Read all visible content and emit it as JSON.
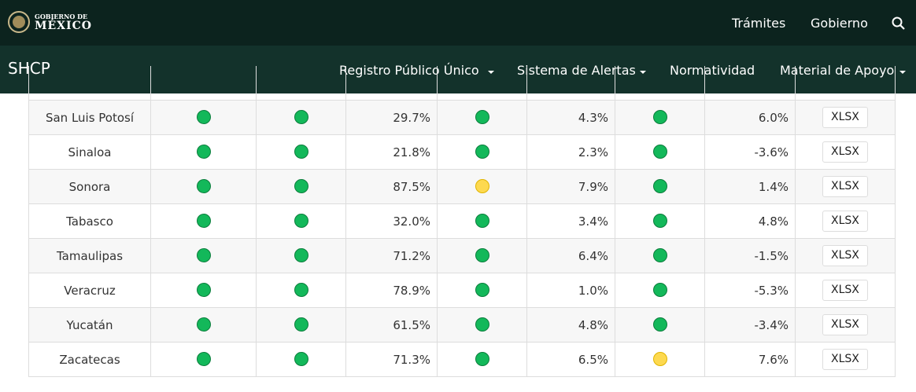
{
  "header": {
    "logo_line1": "GOBIERNO DE",
    "logo_line2": "MÉXICO",
    "nav": [
      "Trámites",
      "Gobierno"
    ]
  },
  "subnav": {
    "title": "SHCP",
    "menu": [
      "Registro Público Único",
      "Sistema de Alertas",
      "Normatividad",
      "Material de Apoyo"
    ]
  },
  "table": {
    "rows": [
      [
        "San Luis Potosí",
        "#13b85a",
        "#13b85a",
        "29.7%",
        "#13b85a",
        "4.3%",
        "#13b85a",
        "6.0%",
        "XLSX"
      ],
      [
        "Sinaloa",
        "#13b85a",
        "#13b85a",
        "21.8%",
        "#13b85a",
        "2.3%",
        "#13b85a",
        "-3.6%",
        "XLSX"
      ],
      [
        "Sonora",
        "#13b85a",
        "#13b85a",
        "87.5%",
        "#fdd94f",
        "7.9%",
        "#13b85a",
        "1.4%",
        "XLSX"
      ],
      [
        "Tabasco",
        "#13b85a",
        "#13b85a",
        "32.0%",
        "#13b85a",
        "3.4%",
        "#13b85a",
        "4.8%",
        "XLSX"
      ],
      [
        "Tamaulipas",
        "#13b85a",
        "#13b85a",
        "71.2%",
        "#13b85a",
        "6.4%",
        "#13b85a",
        "-1.5%",
        "XLSX"
      ],
      [
        "Veracruz",
        "#13b85a",
        "#13b85a",
        "78.9%",
        "#13b85a",
        "1.0%",
        "#13b85a",
        "-5.3%",
        "XLSX"
      ],
      [
        "Yucatán",
        "#13b85a",
        "#13b85a",
        "61.5%",
        "#13b85a",
        "4.8%",
        "#13b85a",
        "-3.4%",
        "XLSX"
      ],
      [
        "Zacatecas",
        "#13b85a",
        "#13b85a",
        "71.3%",
        "#13b85a",
        "6.5%",
        "#fdd94f",
        "7.6%",
        "XLSX"
      ]
    ]
  }
}
